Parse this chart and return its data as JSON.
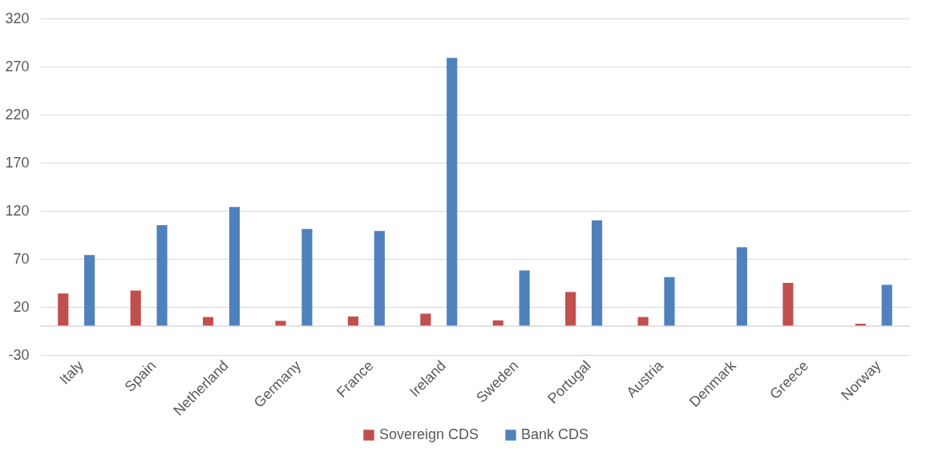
{
  "chart_data": {
    "type": "bar",
    "categories": [
      "Italy",
      "Spain",
      "Netherland",
      "Germany",
      "France",
      "Ireland",
      "Sweden",
      "Portugal",
      "Austria",
      "Denmark",
      "Greece",
      "Norway"
    ],
    "series": [
      {
        "name": "Sovereign CDS",
        "color": "#c0504d",
        "values": [
          34,
          37,
          9.5,
          5.5,
          10,
          13,
          6,
          35.5,
          9.5,
          null,
          45,
          2.5
        ]
      },
      {
        "name": "Bank CDS",
        "color": "#4f81bd",
        "values": [
          74,
          105,
          124,
          101,
          99,
          279,
          58,
          110,
          51,
          82,
          null,
          43
        ]
      }
    ],
    "ylim": [
      -30,
      320
    ],
    "yticks": [
      -30,
      20,
      70,
      120,
      170,
      220,
      270,
      320
    ],
    "grid": "y",
    "legend": "bottom",
    "ref_lines": [
      {
        "axis": "y",
        "value": 0,
        "color": "#d9d9d9"
      }
    ]
  }
}
